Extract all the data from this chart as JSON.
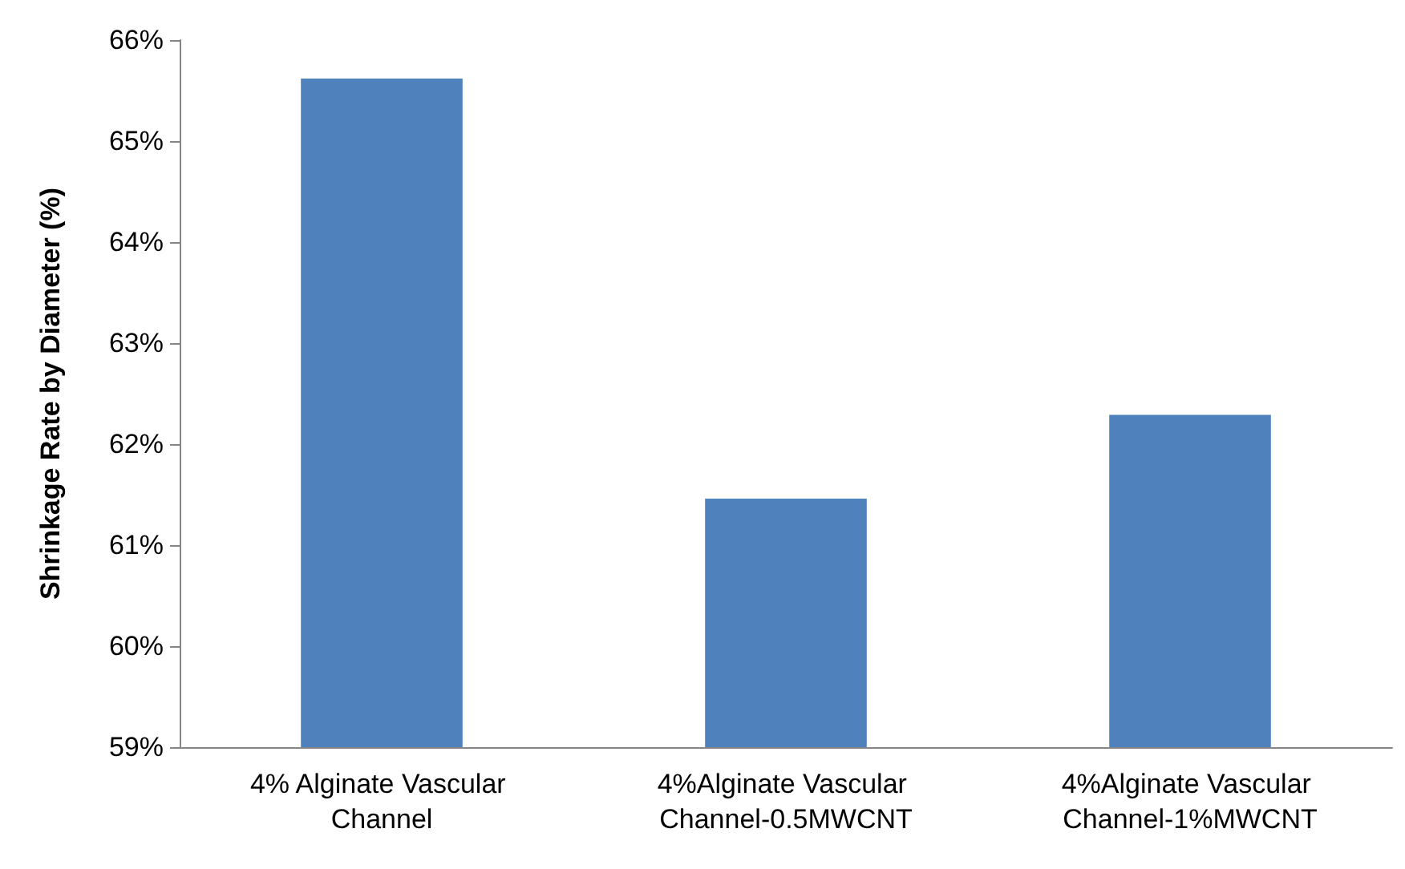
{
  "chart_data": {
    "type": "bar",
    "ylabel": "Shrinkage Rate by Diameter (%)",
    "categories": [
      "4% Alginate Vascular Channel",
      "4%Alginate Vascular Channel-0.5MWCNT",
      "4%Alginate Vascular Channel-1%MWCNT"
    ],
    "values": [
      65.62,
      61.46,
      62.29
    ],
    "color": "#4f81bd",
    "ylim": [
      59,
      66
    ],
    "yticks": [
      {
        "value": 59,
        "label": "59%"
      },
      {
        "value": 60,
        "label": "60%"
      },
      {
        "value": 61,
        "label": "61%"
      },
      {
        "value": 62,
        "label": "62%"
      },
      {
        "value": 63,
        "label": "63%"
      },
      {
        "value": 64,
        "label": "64%"
      },
      {
        "value": 65,
        "label": "65%"
      },
      {
        "value": 66,
        "label": "66%"
      }
    ],
    "grid": false
  }
}
